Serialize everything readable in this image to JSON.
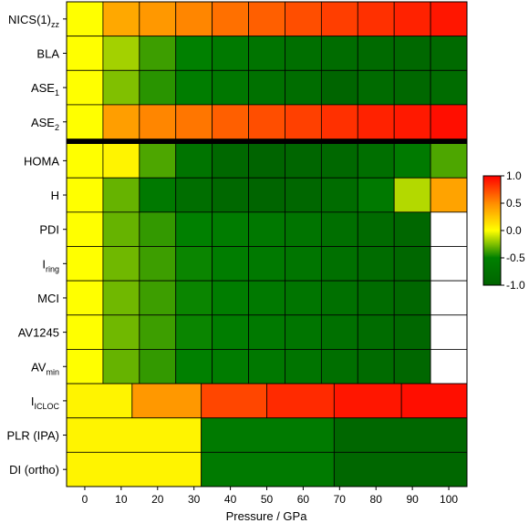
{
  "chart_data": {
    "type": "heatmap",
    "title": "",
    "xlabel": "Pressure / GPa",
    "ylabel": "",
    "x_ticks": [
      "0",
      "10",
      "20",
      "30",
      "40",
      "50",
      "60",
      "70",
      "80",
      "90",
      "100"
    ],
    "row_labels": [
      {
        "main": "NICS(1)",
        "sub": "zz"
      },
      {
        "main": "BLA",
        "sub": ""
      },
      {
        "main": "ASE",
        "sub": "1"
      },
      {
        "main": "ASE",
        "sub": "2"
      },
      {
        "main": "HOMA",
        "sub": ""
      },
      {
        "main": "H",
        "sub": ""
      },
      {
        "main": "PDI",
        "sub": ""
      },
      {
        "main": "I",
        "sub": "ring"
      },
      {
        "main": "MCI",
        "sub": ""
      },
      {
        "main": "AV1245",
        "sub": ""
      },
      {
        "main": "AV",
        "sub": "min"
      },
      {
        "main": "I",
        "sub": "ICLOC"
      },
      {
        "main": "PLR (IPA)",
        "sub": ""
      },
      {
        "main": "DI (ortho)",
        "sub": ""
      }
    ],
    "rows": [
      {
        "label": "NICS(1)zz",
        "cells": [
          {
            "x0": -5,
            "x1": 5,
            "v": 0.0
          },
          {
            "x0": 5,
            "x1": 15,
            "v": 0.38
          },
          {
            "x0": 15,
            "x1": 25,
            "v": 0.45
          },
          {
            "x0": 25,
            "x1": 35,
            "v": 0.52
          },
          {
            "x0": 35,
            "x1": 45,
            "v": 0.6
          },
          {
            "x0": 45,
            "x1": 55,
            "v": 0.66
          },
          {
            "x0": 55,
            "x1": 65,
            "v": 0.72
          },
          {
            "x0": 65,
            "x1": 75,
            "v": 0.78
          },
          {
            "x0": 75,
            "x1": 85,
            "v": 0.83
          },
          {
            "x0": 85,
            "x1": 95,
            "v": 0.88
          },
          {
            "x0": 95,
            "x1": 105,
            "v": 0.92
          }
        ]
      },
      {
        "label": "BLA",
        "cells": [
          {
            "x0": -5,
            "x1": 5,
            "v": 0.0
          },
          {
            "x0": 5,
            "x1": 15,
            "v": -0.18
          },
          {
            "x0": 15,
            "x1": 25,
            "v": -0.38
          },
          {
            "x0": 25,
            "x1": 35,
            "v": -0.5
          },
          {
            "x0": 35,
            "x1": 45,
            "v": -0.62
          },
          {
            "x0": 45,
            "x1": 55,
            "v": -0.72
          },
          {
            "x0": 55,
            "x1": 65,
            "v": -0.8
          },
          {
            "x0": 65,
            "x1": 75,
            "v": -0.86
          },
          {
            "x0": 75,
            "x1": 85,
            "v": -0.9
          },
          {
            "x0": 85,
            "x1": 95,
            "v": -0.93
          },
          {
            "x0": 95,
            "x1": 105,
            "v": -0.9
          }
        ]
      },
      {
        "label": "ASE1",
        "cells": [
          {
            "x0": -5,
            "x1": 5,
            "v": 0.0
          },
          {
            "x0": 5,
            "x1": 15,
            "v": -0.25
          },
          {
            "x0": 15,
            "x1": 25,
            "v": -0.42
          },
          {
            "x0": 25,
            "x1": 35,
            "v": -0.55
          },
          {
            "x0": 35,
            "x1": 45,
            "v": -0.66
          },
          {
            "x0": 45,
            "x1": 55,
            "v": -0.76
          },
          {
            "x0": 55,
            "x1": 65,
            "v": -0.84
          },
          {
            "x0": 65,
            "x1": 75,
            "v": -0.98
          },
          {
            "x0": 75,
            "x1": 85,
            "v": -0.88
          },
          {
            "x0": 85,
            "x1": 95,
            "v": -0.92
          },
          {
            "x0": 95,
            "x1": 105,
            "v": -0.86
          }
        ]
      },
      {
        "label": "ASE2",
        "cells": [
          {
            "x0": -5,
            "x1": 5,
            "v": 0.0
          },
          {
            "x0": 5,
            "x1": 15,
            "v": 0.42
          },
          {
            "x0": 15,
            "x1": 25,
            "v": 0.52
          },
          {
            "x0": 25,
            "x1": 35,
            "v": 0.58
          },
          {
            "x0": 35,
            "x1": 45,
            "v": 0.66
          },
          {
            "x0": 45,
            "x1": 55,
            "v": 0.72
          },
          {
            "x0": 55,
            "x1": 65,
            "v": 0.77
          },
          {
            "x0": 65,
            "x1": 75,
            "v": 0.83
          },
          {
            "x0": 75,
            "x1": 85,
            "v": 0.88
          },
          {
            "x0": 85,
            "x1": 95,
            "v": 0.91
          },
          {
            "x0": 95,
            "x1": 105,
            "v": 0.95
          }
        ]
      },
      {
        "label": "HOMA",
        "cells": [
          {
            "x0": -5,
            "x1": 5,
            "v": 0.0
          },
          {
            "x0": 5,
            "x1": 15,
            "v": 0.05
          },
          {
            "x0": 15,
            "x1": 25,
            "v": -0.35
          },
          {
            "x0": 25,
            "x1": 35,
            "v": -0.72
          },
          {
            "x0": 35,
            "x1": 45,
            "v": -0.93
          },
          {
            "x0": 45,
            "x1": 55,
            "v": -1.0
          },
          {
            "x0": 55,
            "x1": 65,
            "v": -0.97
          },
          {
            "x0": 65,
            "x1": 75,
            "v": -0.92
          },
          {
            "x0": 75,
            "x1": 85,
            "v": -0.8
          },
          {
            "x0": 85,
            "x1": 95,
            "v": -0.6
          },
          {
            "x0": 95,
            "x1": 105,
            "v": -0.35
          }
        ]
      },
      {
        "label": "H",
        "cells": [
          {
            "x0": -5,
            "x1": 5,
            "v": 0.0
          },
          {
            "x0": 5,
            "x1": 15,
            "v": -0.3
          },
          {
            "x0": 15,
            "x1": 25,
            "v": -0.62
          },
          {
            "x0": 25,
            "x1": 35,
            "v": -0.82
          },
          {
            "x0": 35,
            "x1": 45,
            "v": -0.92
          },
          {
            "x0": 45,
            "x1": 55,
            "v": -0.98
          },
          {
            "x0": 55,
            "x1": 65,
            "v": -0.94
          },
          {
            "x0": 65,
            "x1": 75,
            "v": -0.85
          },
          {
            "x0": 75,
            "x1": 85,
            "v": -0.62
          },
          {
            "x0": 85,
            "x1": 95,
            "v": -0.15
          },
          {
            "x0": 95,
            "x1": 105,
            "v": 0.4
          }
        ]
      },
      {
        "label": "PDI",
        "cells": [
          {
            "x0": -5,
            "x1": 5,
            "v": 0.0
          },
          {
            "x0": 5,
            "x1": 15,
            "v": -0.3
          },
          {
            "x0": 15,
            "x1": 25,
            "v": -0.4
          },
          {
            "x0": 25,
            "x1": 35,
            "v": -0.5
          },
          {
            "x0": 35,
            "x1": 45,
            "v": -0.58
          },
          {
            "x0": 45,
            "x1": 55,
            "v": -0.65
          },
          {
            "x0": 55,
            "x1": 65,
            "v": -0.72
          },
          {
            "x0": 65,
            "x1": 75,
            "v": -0.8
          },
          {
            "x0": 75,
            "x1": 85,
            "v": -0.88
          },
          {
            "x0": 85,
            "x1": 95,
            "v": -0.95
          },
          {
            "x0": 95,
            "x1": 105,
            "v": null
          }
        ]
      },
      {
        "label": "Iring",
        "cells": [
          {
            "x0": -5,
            "x1": 5,
            "v": 0.0
          },
          {
            "x0": 5,
            "x1": 15,
            "v": -0.28
          },
          {
            "x0": 15,
            "x1": 25,
            "v": -0.38
          },
          {
            "x0": 25,
            "x1": 35,
            "v": -0.48
          },
          {
            "x0": 35,
            "x1": 45,
            "v": -0.56
          },
          {
            "x0": 45,
            "x1": 55,
            "v": -0.63
          },
          {
            "x0": 55,
            "x1": 65,
            "v": -0.7
          },
          {
            "x0": 65,
            "x1": 75,
            "v": -0.78
          },
          {
            "x0": 75,
            "x1": 85,
            "v": -0.86
          },
          {
            "x0": 85,
            "x1": 95,
            "v": -0.94
          },
          {
            "x0": 95,
            "x1": 105,
            "v": null
          }
        ]
      },
      {
        "label": "MCI",
        "cells": [
          {
            "x0": -5,
            "x1": 5,
            "v": 0.0
          },
          {
            "x0": 5,
            "x1": 15,
            "v": -0.28
          },
          {
            "x0": 15,
            "x1": 25,
            "v": -0.38
          },
          {
            "x0": 25,
            "x1": 35,
            "v": -0.48
          },
          {
            "x0": 35,
            "x1": 45,
            "v": -0.56
          },
          {
            "x0": 45,
            "x1": 55,
            "v": -0.63
          },
          {
            "x0": 55,
            "x1": 65,
            "v": -0.7
          },
          {
            "x0": 65,
            "x1": 75,
            "v": -0.78
          },
          {
            "x0": 75,
            "x1": 85,
            "v": -0.86
          },
          {
            "x0": 85,
            "x1": 95,
            "v": -0.94
          },
          {
            "x0": 95,
            "x1": 105,
            "v": null
          }
        ]
      },
      {
        "label": "AV1245",
        "cells": [
          {
            "x0": -5,
            "x1": 5,
            "v": 0.0
          },
          {
            "x0": 5,
            "x1": 15,
            "v": -0.28
          },
          {
            "x0": 15,
            "x1": 25,
            "v": -0.38
          },
          {
            "x0": 25,
            "x1": 35,
            "v": -0.48
          },
          {
            "x0": 35,
            "x1": 45,
            "v": -0.56
          },
          {
            "x0": 45,
            "x1": 55,
            "v": -0.63
          },
          {
            "x0": 55,
            "x1": 65,
            "v": -0.7
          },
          {
            "x0": 65,
            "x1": 75,
            "v": -0.78
          },
          {
            "x0": 75,
            "x1": 85,
            "v": -0.86
          },
          {
            "x0": 85,
            "x1": 95,
            "v": -0.94
          },
          {
            "x0": 95,
            "x1": 105,
            "v": null
          }
        ]
      },
      {
        "label": "AVmin",
        "cells": [
          {
            "x0": -5,
            "x1": 5,
            "v": 0.0
          },
          {
            "x0": 5,
            "x1": 15,
            "v": -0.3
          },
          {
            "x0": 15,
            "x1": 25,
            "v": -0.4
          },
          {
            "x0": 25,
            "x1": 35,
            "v": -0.5
          },
          {
            "x0": 35,
            "x1": 45,
            "v": -0.58
          },
          {
            "x0": 45,
            "x1": 55,
            "v": -0.65
          },
          {
            "x0": 55,
            "x1": 65,
            "v": -0.72
          },
          {
            "x0": 65,
            "x1": 75,
            "v": -0.8
          },
          {
            "x0": 75,
            "x1": 85,
            "v": -0.88
          },
          {
            "x0": 85,
            "x1": 95,
            "v": -0.95
          },
          {
            "x0": 95,
            "x1": 105,
            "v": null
          }
        ]
      },
      {
        "label": "IICLOC",
        "cells": [
          {
            "x0": -5,
            "x1": 13,
            "v": 0.05
          },
          {
            "x0": 13,
            "x1": 32,
            "v": 0.45
          },
          {
            "x0": 32,
            "x1": 50,
            "v": 0.75
          },
          {
            "x0": 50,
            "x1": 68.5,
            "v": 0.85
          },
          {
            "x0": 68.5,
            "x1": 87,
            "v": 0.92
          },
          {
            "x0": 87,
            "x1": 105,
            "v": 0.95
          }
        ]
      },
      {
        "label": "PLR (IPA)",
        "cells": [
          {
            "x0": -5,
            "x1": 32,
            "v": 0.05
          },
          {
            "x0": 32,
            "x1": 68.5,
            "v": -0.6
          },
          {
            "x0": 68.5,
            "x1": 105,
            "v": -0.95
          }
        ]
      },
      {
        "label": "DI (ortho)",
        "cells": [
          {
            "x0": -5,
            "x1": 32,
            "v": 0.05
          },
          {
            "x0": 32,
            "x1": 68.5,
            "v": -0.6
          },
          {
            "x0": 68.5,
            "x1": 105,
            "v": -0.95
          }
        ]
      }
    ],
    "xlim": [
      -5,
      105
    ],
    "colorbar": {
      "range": [
        -1.0,
        1.0
      ],
      "ticks": [
        "1.0",
        "0.5",
        "0.0",
        "-0.5",
        "-1.0"
      ],
      "tick_values": [
        1.0,
        0.5,
        0.0,
        -0.5,
        -1.0
      ],
      "stops": [
        "#006400",
        "#008000",
        "#ffff00",
        "#ff8c00",
        "#ff0000"
      ]
    },
    "separator_after_row": "ASE2",
    "missing_color": "#ffffff",
    "grid": true,
    "legend": "right"
  }
}
